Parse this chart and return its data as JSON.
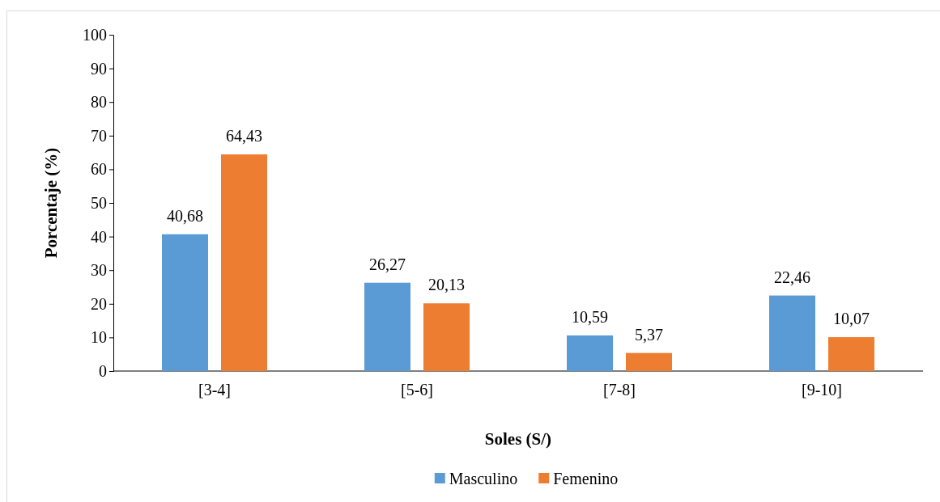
{
  "chart_data": {
    "type": "bar",
    "xlabel": "Soles (S/)",
    "ylabel": "Porcentaje (%)",
    "categories": [
      "[3-4]",
      "[5-6]",
      "[7-8]",
      "[9-10]"
    ],
    "series": [
      {
        "name": "Masculino",
        "color": "#5b9bd5",
        "values": [
          40.68,
          26.27,
          10.59,
          22.46
        ],
        "value_labels": [
          "40,68",
          "26,27",
          "10,59",
          "22,46"
        ]
      },
      {
        "name": "Femenino",
        "color": "#ed7d31",
        "values": [
          64.43,
          20.13,
          5.37,
          10.07
        ],
        "value_labels": [
          "64,43",
          "20,13",
          "5,37",
          "10,07"
        ]
      }
    ],
    "ylim": [
      0,
      100
    ],
    "yticks": [
      0,
      10,
      20,
      30,
      40,
      50,
      60,
      70,
      80,
      90,
      100
    ],
    "grid": false,
    "legend": "bottom"
  }
}
